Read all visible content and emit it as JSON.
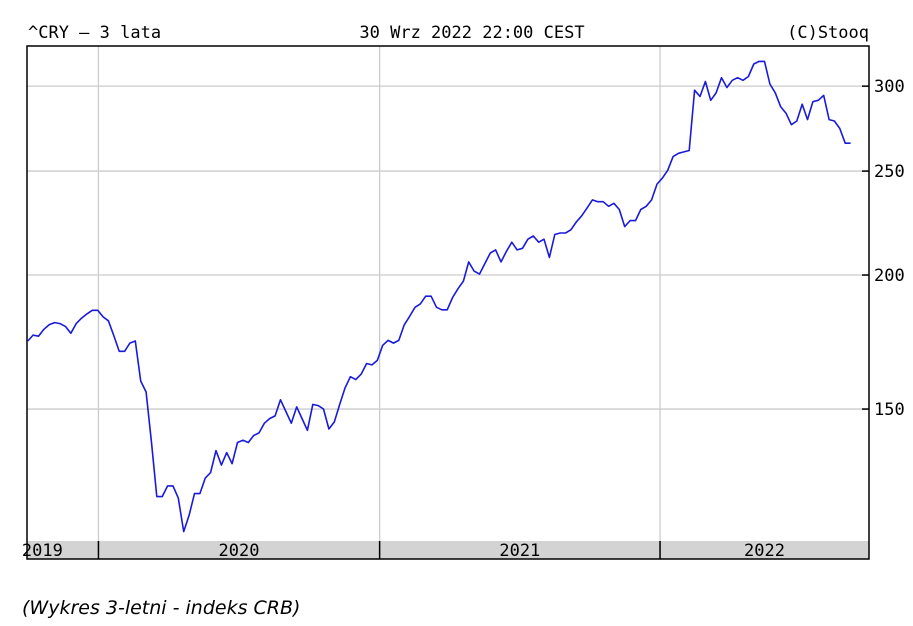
{
  "header": {
    "left": "^CRY – 3 lata",
    "center": "30 Wrz 2022 22:00 CEST",
    "right": "(C)Stooq"
  },
  "caption": "(Wykres 3-letni - indeks CRB)",
  "colors": {
    "line": "#1a1adb",
    "grid": "#cccccc",
    "frame": "#000000",
    "axis_band": "#d3d3d3"
  },
  "chart_data": {
    "type": "line",
    "title": "^CRY – 3 lata",
    "xlabel": "",
    "ylabel": "",
    "y_scale": "log",
    "ylim": [
      113,
      327
    ],
    "xlim": [
      "2019-09-30",
      "2022-09-30"
    ],
    "grid": true,
    "y_ticks": [
      150,
      200,
      250,
      300
    ],
    "x_tick_labels": [
      "2019",
      "2020",
      "2021",
      "2022"
    ],
    "x_tick_dates": [
      "2019-10-01",
      "2020-01-01",
      "2021-01-01",
      "2022-01-01"
    ],
    "series": [
      {
        "values": [
          [
            "2019-10-01",
            173.6
          ],
          [
            "2019-10-08",
            175.8
          ],
          [
            "2019-10-15",
            175.4
          ],
          [
            "2019-10-22",
            178.0
          ],
          [
            "2019-10-29",
            179.8
          ],
          [
            "2019-11-05",
            180.6
          ],
          [
            "2019-11-12",
            180.2
          ],
          [
            "2019-11-19",
            179.1
          ],
          [
            "2019-11-26",
            176.5
          ],
          [
            "2019-12-03",
            180.2
          ],
          [
            "2019-12-10",
            182.3
          ],
          [
            "2019-12-17",
            184.0
          ],
          [
            "2019-12-24",
            185.4
          ],
          [
            "2019-12-31",
            185.4
          ],
          [
            "2020-01-07",
            182.8
          ],
          [
            "2020-01-14",
            181.3
          ],
          [
            "2020-01-21",
            175.6
          ],
          [
            "2020-01-28",
            169.8
          ],
          [
            "2020-02-04",
            169.8
          ],
          [
            "2020-02-11",
            172.8
          ],
          [
            "2020-02-18",
            173.6
          ],
          [
            "2020-02-25",
            159.3
          ],
          [
            "2020-03-03",
            155.6
          ],
          [
            "2020-03-10",
            139.6
          ],
          [
            "2020-03-17",
            124.3
          ],
          [
            "2020-03-24",
            124.3
          ],
          [
            "2020-03-31",
            127.2
          ],
          [
            "2020-04-07",
            127.2
          ],
          [
            "2020-04-14",
            123.9
          ],
          [
            "2020-04-21",
            115.3
          ],
          [
            "2020-04-28",
            119.4
          ],
          [
            "2020-05-05",
            125.1
          ],
          [
            "2020-05-12",
            125.1
          ],
          [
            "2020-05-19",
            129.3
          ],
          [
            "2020-05-26",
            130.9
          ],
          [
            "2020-06-02",
            137.2
          ],
          [
            "2020-06-09",
            133.0
          ],
          [
            "2020-06-16",
            136.6
          ],
          [
            "2020-06-23",
            133.4
          ],
          [
            "2020-06-30",
            139.6
          ],
          [
            "2020-07-07",
            140.3
          ],
          [
            "2020-07-14",
            139.6
          ],
          [
            "2020-07-21",
            141.7
          ],
          [
            "2020-07-28",
            142.5
          ],
          [
            "2020-08-04",
            145.5
          ],
          [
            "2020-08-11",
            147.0
          ],
          [
            "2020-08-18",
            147.8
          ],
          [
            "2020-08-25",
            153.0
          ],
          [
            "2020-09-01",
            149.2
          ],
          [
            "2020-09-08",
            145.5
          ],
          [
            "2020-09-15",
            150.7
          ],
          [
            "2020-09-22",
            147.0
          ],
          [
            "2020-09-29",
            143.3
          ],
          [
            "2020-10-06",
            151.5
          ],
          [
            "2020-10-13",
            151.1
          ],
          [
            "2020-10-20",
            150.0
          ],
          [
            "2020-10-27",
            143.7
          ],
          [
            "2020-11-03",
            145.9
          ],
          [
            "2020-11-10",
            151.5
          ],
          [
            "2020-11-17",
            157.0
          ],
          [
            "2020-11-24",
            160.8
          ],
          [
            "2020-12-01",
            159.8
          ],
          [
            "2020-12-08",
            161.7
          ],
          [
            "2020-12-15",
            165.4
          ],
          [
            "2020-12-22",
            164.9
          ],
          [
            "2020-12-29",
            166.5
          ],
          [
            "2021-01-05",
            172.0
          ],
          [
            "2021-01-12",
            173.8
          ],
          [
            "2021-01-19",
            172.8
          ],
          [
            "2021-01-26",
            173.8
          ],
          [
            "2021-02-02",
            179.7
          ],
          [
            "2021-02-09",
            183.0
          ],
          [
            "2021-02-16",
            186.6
          ],
          [
            "2021-02-23",
            188.0
          ],
          [
            "2021-03-02",
            191.1
          ],
          [
            "2021-03-09",
            191.1
          ],
          [
            "2021-03-16",
            186.6
          ],
          [
            "2021-03-23",
            185.6
          ],
          [
            "2021-03-30",
            185.6
          ],
          [
            "2021-04-06",
            190.6
          ],
          [
            "2021-04-13",
            194.2
          ],
          [
            "2021-04-20",
            197.4
          ],
          [
            "2021-04-27",
            205.7
          ],
          [
            "2021-05-04",
            201.7
          ],
          [
            "2021-05-11",
            200.4
          ],
          [
            "2021-05-18",
            205.0
          ],
          [
            "2021-05-25",
            209.7
          ],
          [
            "2021-06-01",
            211.1
          ],
          [
            "2021-06-08",
            205.7
          ],
          [
            "2021-06-15",
            210.4
          ],
          [
            "2021-06-22",
            214.6
          ],
          [
            "2021-06-29",
            211.1
          ],
          [
            "2021-07-06",
            211.8
          ],
          [
            "2021-07-13",
            216.0
          ],
          [
            "2021-07-20",
            217.5
          ],
          [
            "2021-07-27",
            214.6
          ],
          [
            "2021-08-03",
            216.0
          ],
          [
            "2021-08-10",
            207.7
          ],
          [
            "2021-08-17",
            218.2
          ],
          [
            "2021-08-24",
            218.9
          ],
          [
            "2021-08-31",
            218.9
          ],
          [
            "2021-09-07",
            220.4
          ],
          [
            "2021-09-14",
            224.1
          ],
          [
            "2021-09-21",
            227.1
          ],
          [
            "2021-09-28",
            231.0
          ],
          [
            "2021-10-05",
            235.0
          ],
          [
            "2021-10-12",
            234.1
          ],
          [
            "2021-10-19",
            234.1
          ],
          [
            "2021-10-26",
            231.8
          ],
          [
            "2021-11-02",
            233.3
          ],
          [
            "2021-11-09",
            230.2
          ],
          [
            "2021-11-16",
            221.9
          ],
          [
            "2021-11-23",
            224.8
          ],
          [
            "2021-11-30",
            224.8
          ],
          [
            "2021-12-07",
            230.2
          ],
          [
            "2021-12-14",
            231.8
          ],
          [
            "2021-12-21",
            235.0
          ],
          [
            "2021-12-28",
            243.1
          ],
          [
            "2022-01-04",
            246.2
          ],
          [
            "2022-01-11",
            250.4
          ],
          [
            "2022-01-18",
            257.9
          ],
          [
            "2022-01-25",
            259.7
          ],
          [
            "2022-02-01",
            260.5
          ],
          [
            "2022-02-08",
            261.3
          ],
          [
            "2022-02-15",
            297.4
          ],
          [
            "2022-02-22",
            293.4
          ],
          [
            "2022-03-01",
            303.0
          ],
          [
            "2022-03-08",
            291.0
          ],
          [
            "2022-03-15",
            295.7
          ],
          [
            "2022-03-22",
            305.5
          ],
          [
            "2022-03-29",
            299.1
          ],
          [
            "2022-04-05",
            303.8
          ],
          [
            "2022-04-12",
            305.5
          ],
          [
            "2022-04-19",
            303.8
          ],
          [
            "2022-04-26",
            306.3
          ],
          [
            "2022-05-03",
            314.6
          ],
          [
            "2022-05-10",
            316.4
          ],
          [
            "2022-05-17",
            316.4
          ],
          [
            "2022-05-24",
            301.4
          ],
          [
            "2022-05-31",
            295.7
          ],
          [
            "2022-06-07",
            287.0
          ],
          [
            "2022-06-14",
            283.1
          ],
          [
            "2022-06-21",
            276.2
          ],
          [
            "2022-06-28",
            278.4
          ],
          [
            "2022-07-05",
            288.6
          ],
          [
            "2022-07-12",
            279.2
          ],
          [
            "2022-07-19",
            290.2
          ],
          [
            "2022-07-26",
            291.0
          ],
          [
            "2022-08-02",
            294.1
          ],
          [
            "2022-08-09",
            279.2
          ],
          [
            "2022-08-16",
            278.4
          ],
          [
            "2022-08-23",
            273.9
          ],
          [
            "2022-08-30",
            265.4
          ],
          [
            "2022-09-06",
            265.4
          ]
        ]
      }
    ]
  }
}
